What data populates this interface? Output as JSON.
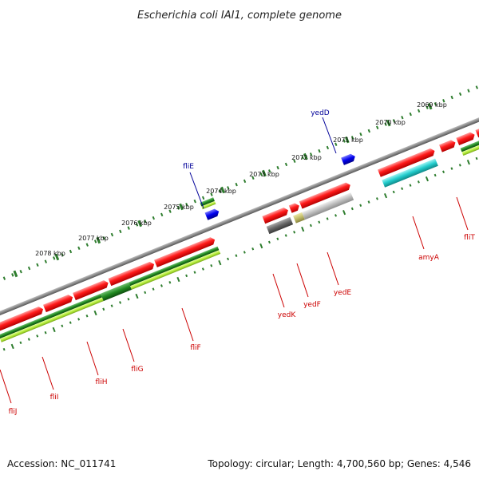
{
  "title": "Escherichia coli IAI1, complete genome",
  "footer": {
    "accession": "Accession: NC_011741",
    "summary": "Topology: circular; Length: 4,700,560 bp; Genes: 4,546"
  },
  "colors": {
    "backbone": "#8a8a8a",
    "gene_red": "#ee1111",
    "label_red": "#cc0000",
    "label_blue": "#000099",
    "dark_green": "#1e7a1e",
    "light_green": "#b5ee3b",
    "cyan": "#22cccc",
    "blue_feature": "#0000ee",
    "gray_feature": "#bdbdbd",
    "dark_gray_feature": "#666666",
    "olive_feature": "#c2bd6a",
    "tick_green": "#2e7d2e"
  },
  "chart_data": {
    "type": "circular-genome-map",
    "scale_labels": [
      "2069 kbp",
      "2070 kbp",
      "2071 kbp",
      "2072 kbp",
      "2073 kbp",
      "2074 kbp",
      "2075 kbp",
      "2076 kbp",
      "2077 kbp",
      "2078 kbp"
    ],
    "scale_kbp": [
      2069,
      2070,
      2071,
      2072,
      2073,
      2074,
      2075,
      2076,
      2077,
      2078
    ],
    "top_strand_labels": [
      {
        "name": "yedD",
        "position_kbp": 2071.2,
        "color": "blue"
      },
      {
        "name": "fliE",
        "position_kbp": 2074.9,
        "color": "blue"
      }
    ],
    "bottom_strand_labels": [
      {
        "name": "fliT",
        "position_kbp": 2069.3,
        "color": "red"
      },
      {
        "name": "amyA",
        "position_kbp": 2070.2,
        "color": "red"
      },
      {
        "name": "yedE",
        "position_kbp": 2071.8,
        "color": "red"
      },
      {
        "name": "yedF",
        "position_kbp": 2072.4,
        "color": "red"
      },
      {
        "name": "yedK",
        "position_kbp": 2072.8,
        "color": "red"
      },
      {
        "name": "fliF",
        "position_kbp": 2075.6,
        "color": "red"
      },
      {
        "name": "fliG",
        "position_kbp": 2076.6,
        "color": "red"
      },
      {
        "name": "fliH",
        "position_kbp": 2077.3,
        "color": "red"
      },
      {
        "name": "fliI",
        "position_kbp": 2078.1,
        "color": "red"
      },
      {
        "name": "fliJ",
        "position_kbp": 2078.9,
        "color": "red"
      }
    ]
  }
}
